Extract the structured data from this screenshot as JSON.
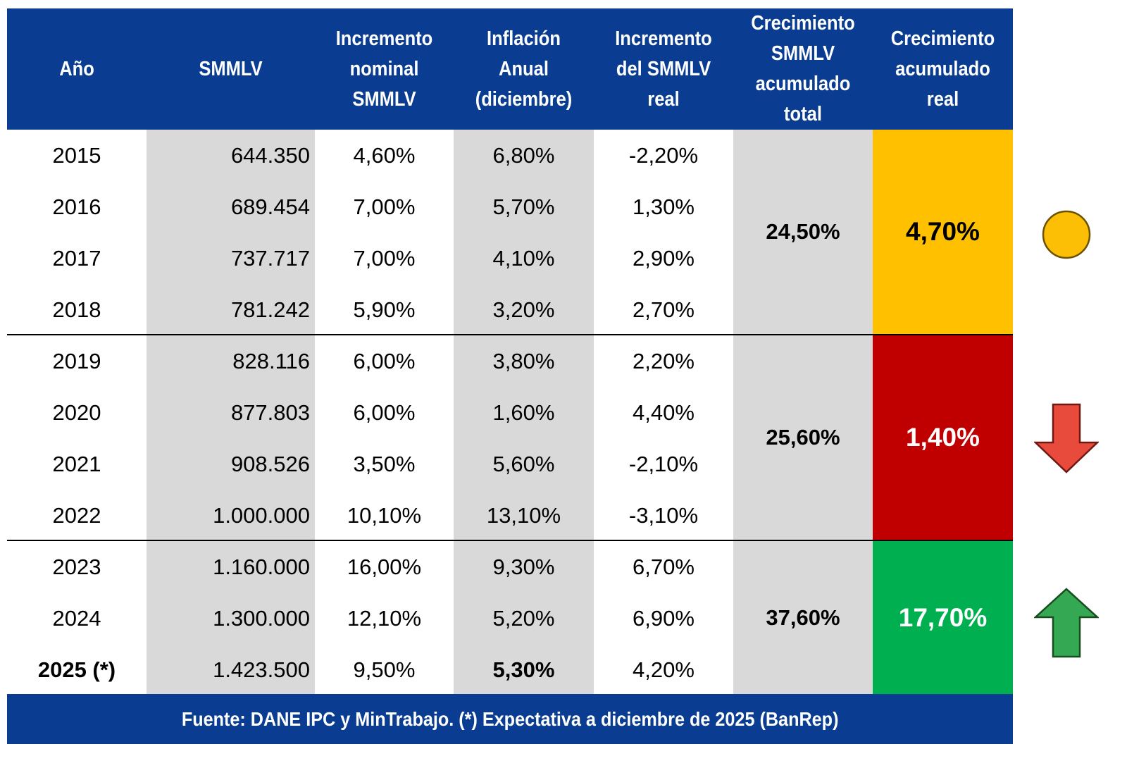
{
  "header": {
    "columns": [
      "Año",
      "SMMLV",
      "Incremento nominal SMMLV",
      "Inflación Anual (diciembre)",
      "Incremento del SMMLV real",
      "Crecimiento SMMLV acumulado total",
      "Crecimiento acumulado real"
    ],
    "columns_lines": [
      [
        "Año"
      ],
      [
        "SMMLV"
      ],
      [
        "Incremento",
        "nominal",
        "SMMLV"
      ],
      [
        "Inflación",
        "Anual",
        "(diciembre)"
      ],
      [
        "Incremento",
        "del SMMLV",
        "real"
      ],
      [
        "Crecimiento",
        "SMMLV",
        "acumulado",
        "total"
      ],
      [
        "Crecimiento",
        "acumulado",
        "real"
      ]
    ]
  },
  "rows": [
    {
      "year": "2015",
      "smmlv": "644.350",
      "nominal": "4,60%",
      "inflation": "6,80%",
      "real": "-2,20%"
    },
    {
      "year": "2016",
      "smmlv": "689.454",
      "nominal": "7,00%",
      "inflation": "5,70%",
      "real": "1,30%"
    },
    {
      "year": "2017",
      "smmlv": "737.717",
      "nominal": "7,00%",
      "inflation": "4,10%",
      "real": "2,90%"
    },
    {
      "year": "2018",
      "smmlv": "781.242",
      "nominal": "5,90%",
      "inflation": "3,20%",
      "real": "2,70%"
    },
    {
      "year": "2019",
      "smmlv": "828.116",
      "nominal": "6,00%",
      "inflation": "3,80%",
      "real": "2,20%"
    },
    {
      "year": "2020",
      "smmlv": "877.803",
      "nominal": "6,00%",
      "inflation": "1,60%",
      "real": "4,40%"
    },
    {
      "year": "2021",
      "smmlv": "908.526",
      "nominal": "3,50%",
      "inflation": "5,60%",
      "real": "-2,10%"
    },
    {
      "year": "2022",
      "smmlv": "1.000.000",
      "nominal": "10,10%",
      "inflation": "13,10%",
      "real": "-3,10%"
    },
    {
      "year": "2023",
      "smmlv": "1.160.000",
      "nominal": "16,00%",
      "inflation": "9,30%",
      "real": "6,70%"
    },
    {
      "year": "2024",
      "smmlv": "1.300.000",
      "nominal": "12,10%",
      "inflation": "5,20%",
      "real": "6,90%"
    },
    {
      "year": "2025 (*)",
      "smmlv": "1.423.500",
      "nominal": "9,50%",
      "inflation": "5,30%",
      "real": "4,20%",
      "bold_year": true,
      "bold_inflation": true
    }
  ],
  "groups": [
    {
      "years": "2015-2018",
      "total": "24,50%",
      "real": "4,70%",
      "color": "#ffc000",
      "text_color": "#000000",
      "indicator": "circle-neutral",
      "indicator_color": "#fcbf05"
    },
    {
      "years": "2019-2022",
      "total": "25,60%",
      "real": "1,40%",
      "color": "#c00000",
      "text_color": "#ffffff",
      "indicator": "arrow-down",
      "indicator_color": "#e84a3c"
    },
    {
      "years": "2023-2025",
      "total": "37,60%",
      "real": "17,70%",
      "color": "#00b050",
      "text_color": "#ffffff",
      "indicator": "arrow-up",
      "indicator_color": "#34a853"
    }
  ],
  "footer": {
    "source": "Fuente: DANE IPC y MinTrabajo. (*) Expectativa a diciembre de 2025 (BanRep)"
  },
  "colors": {
    "header_bg": "#0a3d91",
    "grey_column": "#d9d9d9"
  }
}
